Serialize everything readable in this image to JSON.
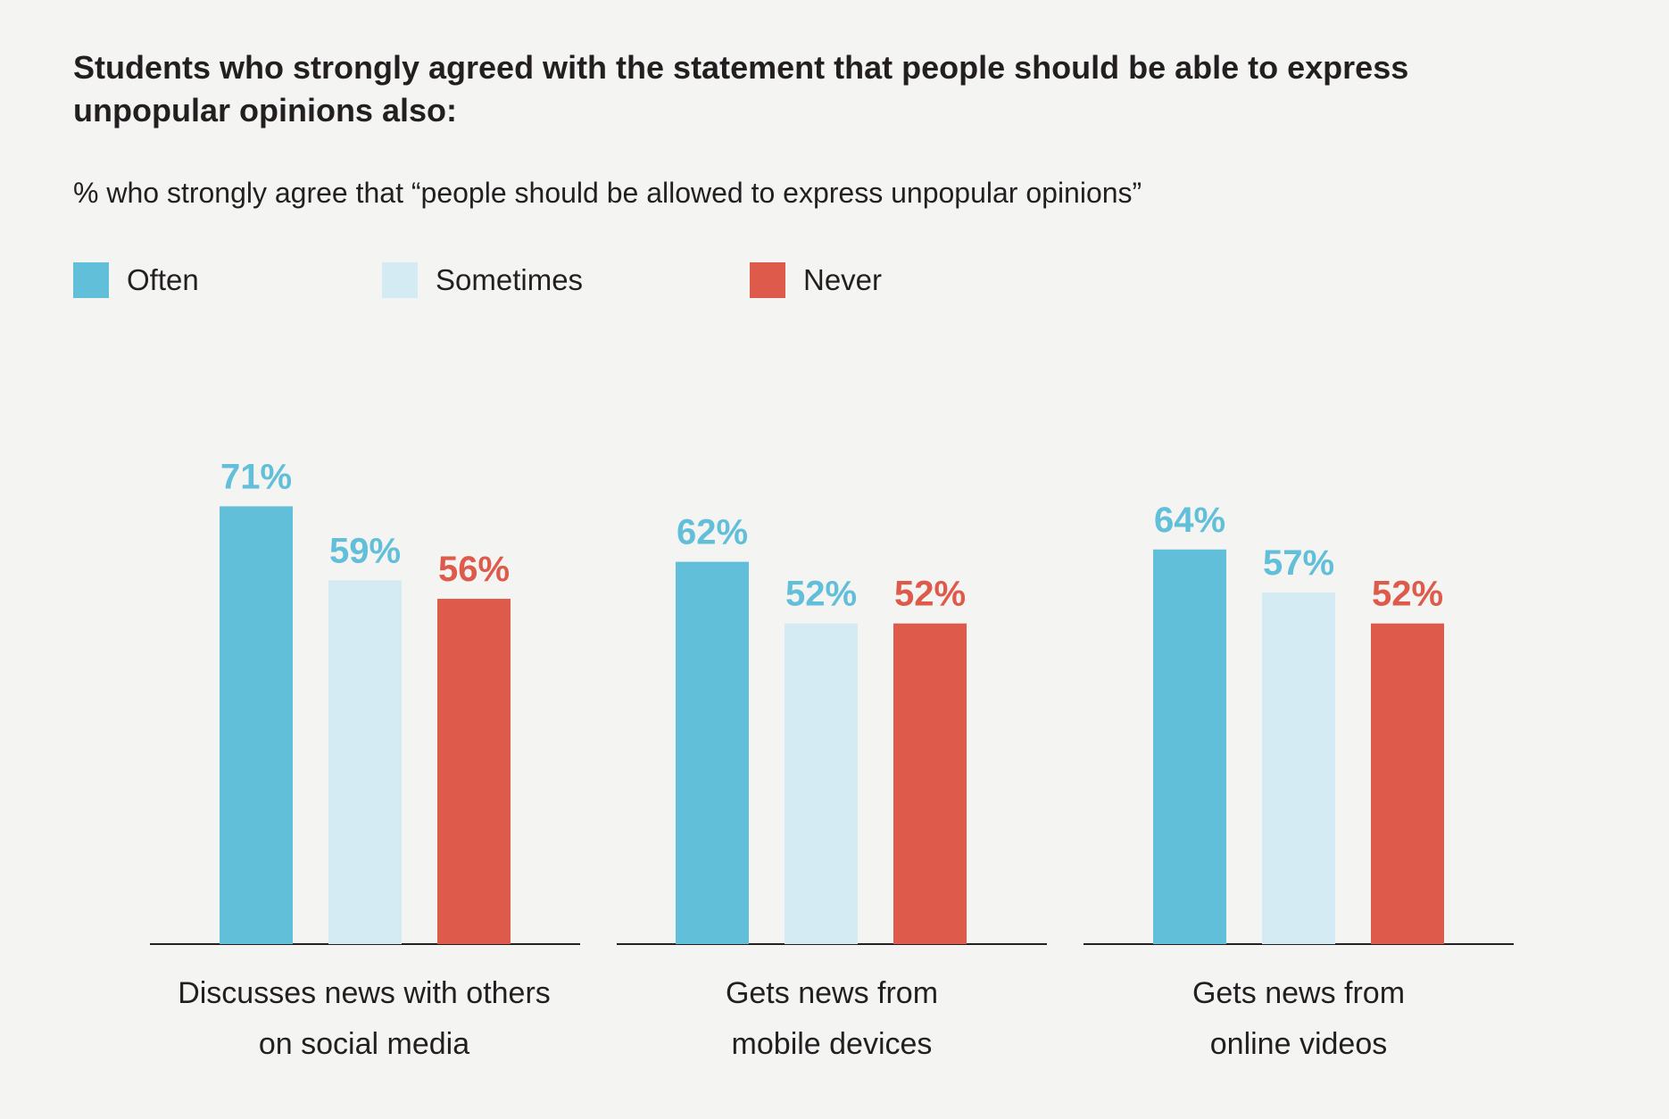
{
  "chart_data": {
    "type": "bar",
    "title": "Students who strongly agreed with the statement that people should be able to express unpopular opinions also:",
    "subtitle": "% who strongly agree that “people should be allowed to express unpopular opinions”",
    "categories": [
      [
        "Discusses news with others",
        "on social media"
      ],
      [
        "Gets news from",
        "mobile devices"
      ],
      [
        "Gets news from",
        "online videos"
      ]
    ],
    "series": [
      {
        "name": "Often",
        "color": "#62bfd9",
        "label_color": "#62bfd9",
        "values": [
          71,
          62,
          64
        ]
      },
      {
        "name": "Sometimes",
        "color": "#d5ebf3",
        "label_color": "#62bfd9",
        "values": [
          59,
          52,
          57
        ]
      },
      {
        "name": "Never",
        "color": "#de5a4b",
        "label_color": "#de5a4b",
        "values": [
          56,
          52,
          52
        ]
      }
    ],
    "value_suffix": "%",
    "legend_position": "top-left",
    "ylim": [
      0,
      100
    ],
    "grid": false
  }
}
